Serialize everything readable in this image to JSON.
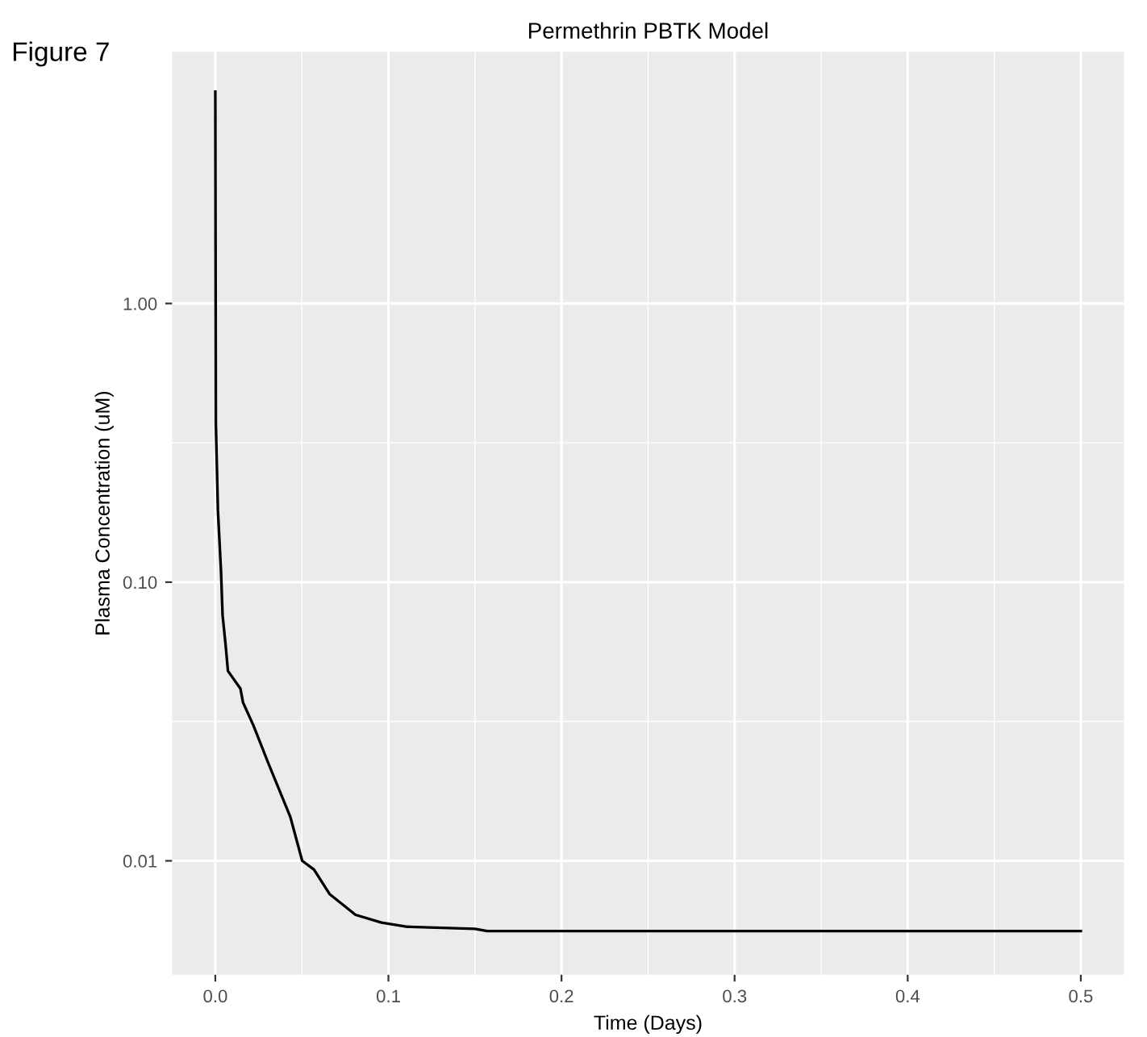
{
  "chart_data": {
    "type": "line",
    "title": "Permethrin PBTK Model",
    "xlabel": "Time (Days)",
    "ylabel": "Plasma Concentration (uM)",
    "annotations": [
      "Figure 7"
    ],
    "x": [
      0,
      0.0003,
      0.0015,
      0.0033,
      0.0042,
      0.006,
      0.0073,
      0.0145,
      0.016,
      0.022,
      0.031,
      0.0433,
      0.0502,
      0.057,
      0.066,
      0.081,
      0.096,
      0.111,
      0.15,
      0.157,
      0.5
    ],
    "series": [
      {
        "color": "#000000",
        "values": [
          5.76,
          0.372,
          0.181,
          0.109,
          0.076,
          0.059,
          0.048,
          0.0415,
          0.037,
          0.0306,
          0.0221,
          0.0144,
          0.01,
          0.0093,
          0.0076,
          0.0064,
          0.006,
          0.0058,
          0.0057,
          0.0056,
          0.0056
        ]
      }
    ],
    "log": "y",
    "grid": true,
    "line_style": "solid",
    "xlim": [
      -0.025,
      0.525
    ],
    "xticks": [
      {
        "value": 0,
        "label": "0.0"
      },
      0.1,
      0.2,
      0.3,
      0.4,
      0.5
    ],
    "ylim": [
      0.0039,
      8.0
    ],
    "yticks": [
      {
        "value": 0.01,
        "label": "0.01"
      },
      {
        "value": 0.1,
        "label": "0.10"
      },
      {
        "value": 1,
        "label": "1.00"
      }
    ]
  }
}
